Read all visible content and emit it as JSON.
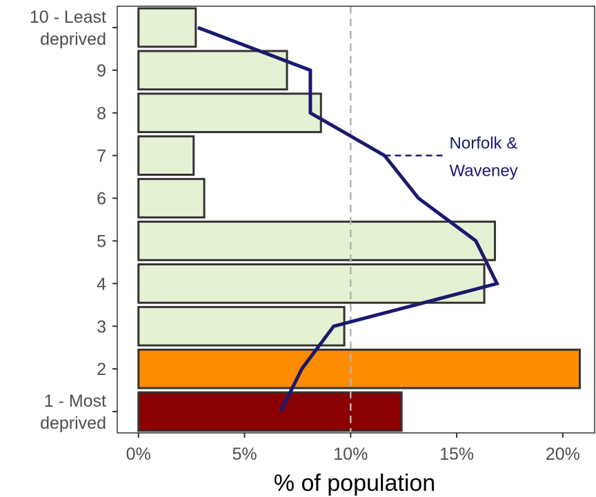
{
  "chart_data": {
    "type": "bar",
    "orientation": "horizontal",
    "xlabel": "% of population",
    "ylabel": "",
    "xlim": [
      -1,
      21.5
    ],
    "x_ticks": [
      0,
      5,
      10,
      15,
      20
    ],
    "x_tick_labels": [
      "0%",
      "5%",
      "10%",
      "15%",
      "20%"
    ],
    "reference_line": {
      "value": 10,
      "style": "dashed",
      "color": "#b3b3b3"
    },
    "grid": false,
    "categories": [
      {
        "id": 1,
        "label_lines": [
          "1 - Most",
          "deprived"
        ]
      },
      {
        "id": 2,
        "label_lines": [
          "2"
        ]
      },
      {
        "id": 3,
        "label_lines": [
          "3"
        ]
      },
      {
        "id": 4,
        "label_lines": [
          "4"
        ]
      },
      {
        "id": 5,
        "label_lines": [
          "5"
        ]
      },
      {
        "id": 6,
        "label_lines": [
          "6"
        ]
      },
      {
        "id": 7,
        "label_lines": [
          "7"
        ]
      },
      {
        "id": 8,
        "label_lines": [
          "8"
        ]
      },
      {
        "id": 9,
        "label_lines": [
          "9"
        ]
      },
      {
        "id": 10,
        "label_lines": [
          "10 - Least",
          "deprived"
        ]
      }
    ],
    "bars": {
      "values": [
        12.4,
        20.8,
        9.7,
        16.3,
        16.8,
        3.1,
        2.6,
        8.6,
        7.0,
        2.7
      ],
      "colors": [
        "#8b0000",
        "#ff8c00",
        "#e5f1d3",
        "#e5f1d3",
        "#e5f1d3",
        "#e5f1d3",
        "#e5f1d3",
        "#e5f1d3",
        "#e5f1d3",
        "#e5f1d3"
      ],
      "stroke": "#333333"
    },
    "comparison_line": {
      "name_lines": [
        "Norfolk &",
        "Waveney"
      ],
      "color": "#1a1a6e",
      "values": [
        6.7,
        7.7,
        9.2,
        16.9,
        15.9,
        13.2,
        11.6,
        8.1,
        8.1,
        2.8
      ],
      "label_category": 7
    }
  }
}
